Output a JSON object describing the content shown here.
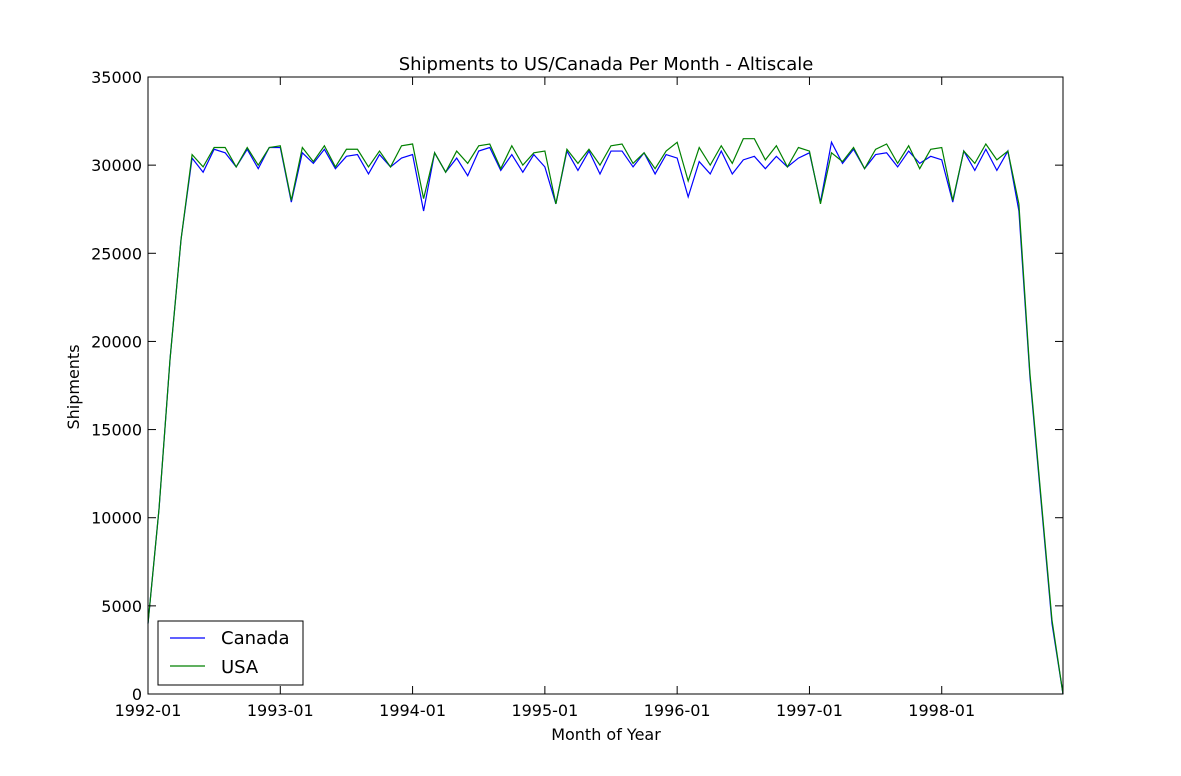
{
  "chart_data": {
    "type": "line",
    "title": "Shipments to US/Canada Per Month - Altiscale",
    "xlabel": "Month of Year",
    "ylabel": "Shipments",
    "ylim": [
      0,
      35000
    ],
    "xlim": [
      "1992-01",
      "1998-12"
    ],
    "yticks": [
      0,
      5000,
      10000,
      15000,
      20000,
      25000,
      30000,
      35000
    ],
    "xticks": [
      "1992-01",
      "1993-01",
      "1994-01",
      "1995-01",
      "1996-01",
      "1997-01",
      "1998-01"
    ],
    "grid": false,
    "legend": "lower-left",
    "x": [
      "1992-01",
      "1992-02",
      "1992-03",
      "1992-04",
      "1992-05",
      "1992-06",
      "1992-07",
      "1992-08",
      "1992-09",
      "1992-10",
      "1992-11",
      "1992-12",
      "1993-01",
      "1993-02",
      "1993-03",
      "1993-04",
      "1993-05",
      "1993-06",
      "1993-07",
      "1993-08",
      "1993-09",
      "1993-10",
      "1993-11",
      "1993-12",
      "1994-01",
      "1994-02",
      "1994-03",
      "1994-04",
      "1994-05",
      "1994-06",
      "1994-07",
      "1994-08",
      "1994-09",
      "1994-10",
      "1994-11",
      "1994-12",
      "1995-01",
      "1995-02",
      "1995-03",
      "1995-04",
      "1995-05",
      "1995-06",
      "1995-07",
      "1995-08",
      "1995-09",
      "1995-10",
      "1995-11",
      "1995-12",
      "1996-01",
      "1996-02",
      "1996-03",
      "1996-04",
      "1996-05",
      "1996-06",
      "1996-07",
      "1996-08",
      "1996-09",
      "1996-10",
      "1996-11",
      "1996-12",
      "1997-01",
      "1997-02",
      "1997-03",
      "1997-04",
      "1997-05",
      "1997-06",
      "1997-07",
      "1997-08",
      "1997-09",
      "1997-10",
      "1997-11",
      "1997-12",
      "1998-01",
      "1998-02",
      "1998-03",
      "1998-04",
      "1998-05",
      "1998-06",
      "1998-07",
      "1998-08",
      "1998-09",
      "1998-10",
      "1998-11",
      "1998-12"
    ],
    "series": [
      {
        "name": "Canada",
        "color": "#0000ff",
        "values": [
          4000,
          10500,
          19000,
          25800,
          30400,
          29600,
          30900,
          30700,
          29900,
          30900,
          29800,
          31000,
          31000,
          27900,
          30700,
          30100,
          30900,
          29800,
          30500,
          30600,
          29500,
          30600,
          29900,
          30400,
          30600,
          27400,
          30700,
          29600,
          30400,
          29400,
          30800,
          31000,
          29700,
          30600,
          29600,
          30600,
          29900,
          27800,
          30800,
          29700,
          30800,
          29500,
          30800,
          30800,
          29900,
          30700,
          29500,
          30600,
          30400,
          28200,
          30200,
          29500,
          30800,
          29500,
          30300,
          30500,
          29800,
          30500,
          29900,
          30400,
          30700,
          27900,
          31300,
          30100,
          30900,
          29800,
          30600,
          30700,
          29900,
          30800,
          30100,
          30500,
          30300,
          27900,
          30800,
          29700,
          30900,
          29700,
          30800,
          27400,
          18000,
          11000,
          4000,
          0
        ]
      },
      {
        "name": "USA",
        "color": "#008000",
        "values": [
          4000,
          10500,
          19000,
          25800,
          30600,
          29900,
          31000,
          31000,
          29900,
          31000,
          30000,
          31000,
          31100,
          28000,
          31000,
          30200,
          31100,
          29900,
          30900,
          30900,
          29900,
          30800,
          29900,
          31100,
          31200,
          28100,
          30700,
          29600,
          30800,
          30100,
          31100,
          31200,
          29800,
          31100,
          30000,
          30700,
          30800,
          27800,
          30900,
          30100,
          30900,
          30000,
          31100,
          31200,
          30100,
          30700,
          29800,
          30800,
          31300,
          29100,
          31000,
          30000,
          31100,
          30100,
          31500,
          31500,
          30300,
          31100,
          29900,
          31000,
          30800,
          27800,
          30700,
          30200,
          31000,
          29800,
          30900,
          31200,
          30100,
          31100,
          29800,
          30900,
          31000,
          28000,
          30800,
          30100,
          31200,
          30300,
          30800,
          27800,
          18200,
          11200,
          4200,
          0
        ]
      }
    ]
  }
}
